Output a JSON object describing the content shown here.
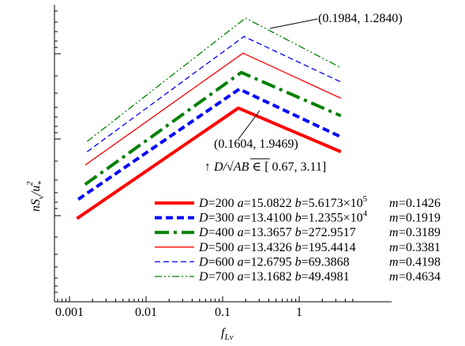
{
  "chart_data": {
    "type": "line",
    "x_scale": "log",
    "y_scale": "log",
    "xlim": [
      0.001,
      5
    ],
    "x_ticks": [
      "0.001",
      "0.01",
      "0.1",
      "1"
    ],
    "xlabel": {
      "main": "f",
      "sub": "Lv"
    },
    "ylabel": {
      "a": "nS",
      "a_sub": "v",
      "b": "/u",
      "b_sub": "*",
      "b_sup": "2"
    },
    "grid": false,
    "legend_position": "lower-right",
    "annotations": {
      "top_point": "(0.1984, 1.2840)",
      "bottom_point": "(0.1604, 1.9469)",
      "range_note": {
        "arrow": "↑",
        "d_over": "D",
        "slash": "/",
        "root": "AB",
        "in": "∈",
        "interval": "[ 0.67, 3.11]"
      }
    },
    "series": [
      {
        "D": "200",
        "a": "15.0822",
        "b_main": "5.6173×10",
        "b_exp": "5",
        "m": "0.1426",
        "color": "#ff0000",
        "style": "solid",
        "width": 4,
        "peak_x": 0.1604,
        "y_start": 0.28,
        "y_peak": 0.652,
        "y_end": 0.505
      },
      {
        "D": "300",
        "a": "13.4100",
        "b_main": "1.2355×10",
        "b_exp": "4",
        "m": "0.1919",
        "color": "#0000ff",
        "style": "dashed",
        "width": 4,
        "peak_x": 0.165,
        "y_start": 0.345,
        "y_peak": 0.716,
        "y_end": 0.555
      },
      {
        "D": "400",
        "a": "13.3657",
        "b_main": "272.9517",
        "b_exp": "",
        "m": "0.3189",
        "color": "#008000",
        "style": "dashdot",
        "width": 4,
        "peak_x": 0.175,
        "y_start": 0.395,
        "y_peak": 0.772,
        "y_end": 0.626
      },
      {
        "D": "500",
        "a": "13.4326",
        "b_main": "195.4414",
        "b_exp": "",
        "m": "0.3381",
        "color": "#ff0000",
        "style": "solid",
        "width": 1.3,
        "peak_x": 0.185,
        "y_start": 0.46,
        "y_peak": 0.837,
        "y_end": 0.685
      },
      {
        "D": "600",
        "a": "12.6795",
        "b_main": "69.3868",
        "b_exp": "",
        "m": "0.4198",
        "color": "#0000ff",
        "style": "dashed",
        "width": 1.3,
        "peak_x": 0.19,
        "y_start": 0.505,
        "y_peak": 0.893,
        "y_end": 0.74
      },
      {
        "D": "700",
        "a": "13.1682",
        "b_main": "49.4981",
        "b_exp": "",
        "m": "0.4634",
        "color": "#008000",
        "style": "dashdotdot",
        "width": 1.3,
        "peak_x": 0.1984,
        "y_start": 0.54,
        "y_peak": 0.955,
        "y_end": 0.788
      }
    ]
  }
}
